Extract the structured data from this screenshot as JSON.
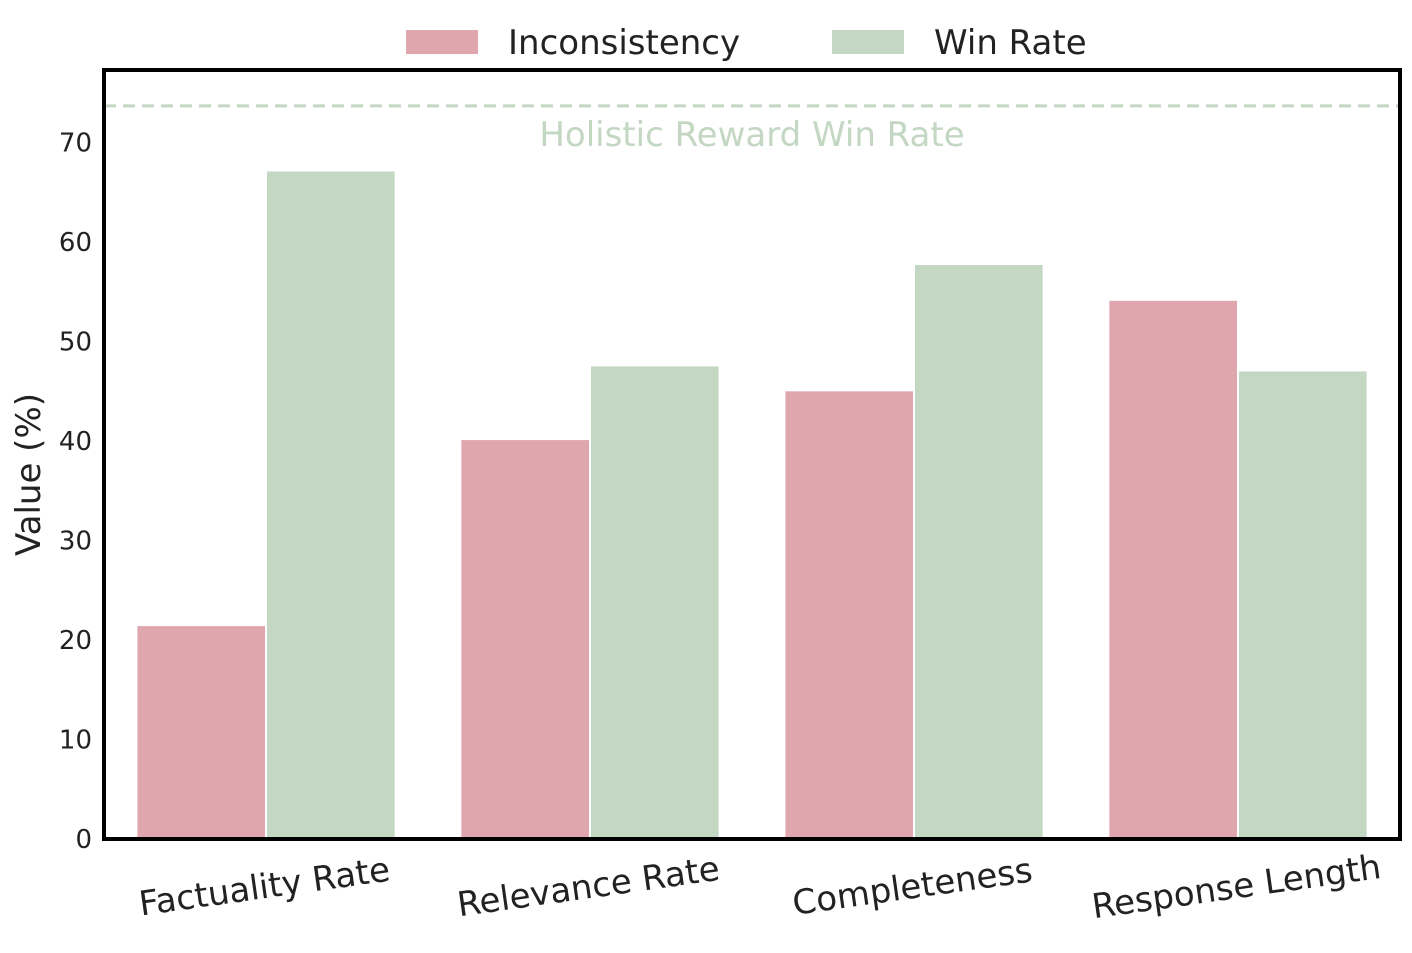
{
  "chart_data": {
    "type": "bar",
    "categories": [
      "Factuality Rate",
      "Relevance Rate",
      "Completeness",
      "Response Length"
    ],
    "series": [
      {
        "name": "Inconsistency",
        "values": [
          21.5,
          40.2,
          45.1,
          54.2
        ],
        "color": "#dfa7ad"
      },
      {
        "name": "Win Rate",
        "values": [
          67.2,
          47.6,
          57.8,
          47.1
        ],
        "color": "#c3d7c3"
      }
    ],
    "reference_line": {
      "label": "Holistic Reward Win Rate",
      "value": 73.7,
      "color": "#c3d7c3",
      "style": "dashed"
    },
    "xlabel": "",
    "ylabel": "Value (%)",
    "ylim": [
      0,
      77.3
    ],
    "yticks": [
      0,
      10,
      20,
      30,
      40,
      50,
      60,
      70
    ],
    "grid": false,
    "legend_position": "top-center"
  }
}
